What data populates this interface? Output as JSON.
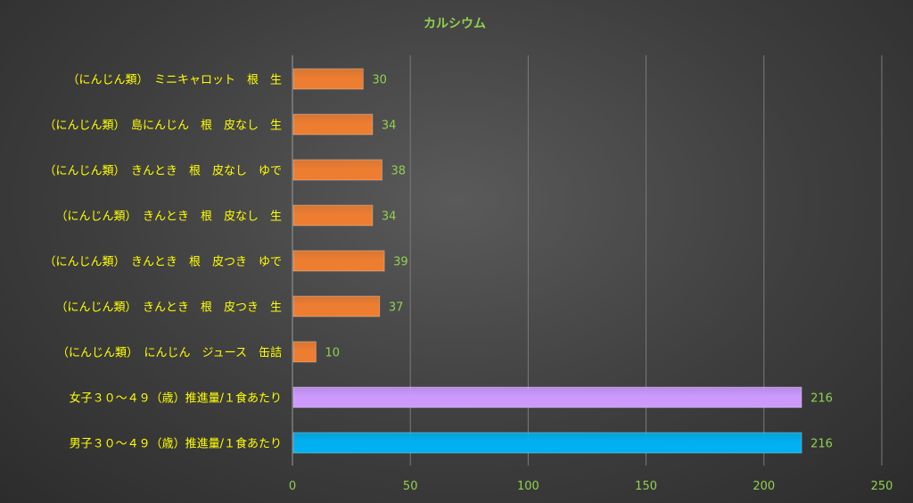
{
  "chart_data": {
    "type": "bar",
    "orientation": "horizontal",
    "title": "カルシウム",
    "categories": [
      "（にんじん類）　ミニキャロット　根　生",
      "（にんじん類）　島にんじん　根　皮なし　生",
      "（にんじん類）　きんとき　根　皮なし　ゆで",
      "（にんじん類）　きんとき　根　皮なし　生",
      "（にんじん類）　きんとき　根　皮つき　ゆで",
      "（にんじん類）　きんとき　根　皮つき　生",
      "（にんじん類）　にんじん　ジュース　缶詰",
      "女子３０～４９（歳）推進量/１食あたり",
      "男子３０～４９（歳）推進量/１食あたり"
    ],
    "values": [
      30,
      34,
      38,
      34,
      39,
      37,
      10,
      216,
      216
    ],
    "bar_colors": [
      "#ed7d31",
      "#ed7d31",
      "#ed7d31",
      "#ed7d31",
      "#ed7d31",
      "#ed7d31",
      "#ed7d31",
      "#cc99ff",
      "#00b0f0"
    ],
    "xlim": [
      0,
      250
    ],
    "xticks": [
      0,
      50,
      100,
      150,
      200,
      250
    ],
    "grid": true,
    "legend": "none",
    "colors": {
      "title": "#92d050",
      "category_text": "#ffff00",
      "tick_text": "#92d050",
      "data_label_text": "#92d050"
    }
  }
}
